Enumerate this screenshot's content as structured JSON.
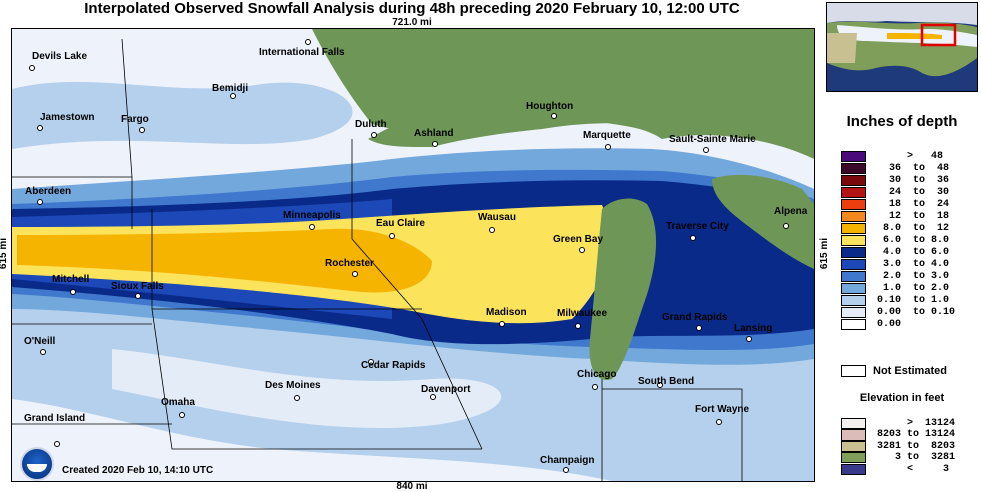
{
  "header": {
    "title": "Interpolated Observed Snowfall Analysis during 48h preceding 2020 February 10, 12:00 UTC",
    "top_distance": "721.0 mi",
    "bottom_distance": "840 mi",
    "left_distance": "615 mi",
    "right_distance": "615 mi"
  },
  "footer": {
    "created": "Created 2020 Feb 10, 14:10 UTC"
  },
  "cities": [
    {
      "name": "Devils Lake"
    },
    {
      "name": "International Falls"
    },
    {
      "name": "Bemidji"
    },
    {
      "name": "Jamestown"
    },
    {
      "name": "Fargo"
    },
    {
      "name": "Duluth"
    },
    {
      "name": "Ashland"
    },
    {
      "name": "Houghton"
    },
    {
      "name": "Marquette"
    },
    {
      "name": "Sault-Sainte Marie"
    },
    {
      "name": "Aberdeen"
    },
    {
      "name": "Minneapolis"
    },
    {
      "name": "Eau Claire"
    },
    {
      "name": "Wausau"
    },
    {
      "name": "Green Bay"
    },
    {
      "name": "Traverse City"
    },
    {
      "name": "Alpena"
    },
    {
      "name": "Rochester"
    },
    {
      "name": "Mitchell"
    },
    {
      "name": "Sioux Falls"
    },
    {
      "name": "Madison"
    },
    {
      "name": "Milwaukee"
    },
    {
      "name": "Grand Rapids"
    },
    {
      "name": "Lansing"
    },
    {
      "name": "O'Neill"
    },
    {
      "name": "Cedar Rapids"
    },
    {
      "name": "Des Moines"
    },
    {
      "name": "Davenport"
    },
    {
      "name": "Chicago"
    },
    {
      "name": "South Bend"
    },
    {
      "name": "Omaha"
    },
    {
      "name": "Fort Wayne"
    },
    {
      "name": "Grand Island"
    },
    {
      "name": "Champaign"
    }
  ],
  "legend": {
    "title": "Inches of depth",
    "rows": [
      {
        "text": "      >   48",
        "color": "#4b0a7a"
      },
      {
        "text": "   36  to  48",
        "color": "#3c0a28"
      },
      {
        "text": "   30  to  36",
        "color": "#7a0a0a"
      },
      {
        "text": "   24  to  30",
        "color": "#b41414"
      },
      {
        "text": "   18  to  24",
        "color": "#ee3e10"
      },
      {
        "text": "   12  to  18",
        "color": "#f5871f"
      },
      {
        "text": "  8.0  to  12",
        "color": "#f5b400"
      },
      {
        "text": "  6.0  to 8.0",
        "color": "#fbe45c"
      },
      {
        "text": "  4.0  to 6.0",
        "color": "#0a2a8a"
      },
      {
        "text": "  3.0  to 4.0",
        "color": "#1c48b8"
      },
      {
        "text": "  2.0  to 3.0",
        "color": "#3f78cc"
      },
      {
        "text": "  1.0  to 2.0",
        "color": "#73a8dc"
      },
      {
        "text": " 0.10  to 1.0",
        "color": "#b4d0ec"
      },
      {
        "text": " 0.00  to 0.10",
        "color": "#e4ecf8"
      },
      {
        "text": " 0.00",
        "color": "#ffffff"
      }
    ],
    "not_estimated": "Not Estimated",
    "elevation_title": "Elevation in feet",
    "elevation_rows": [
      {
        "text": "      >  13124",
        "color": "#f4f0f0"
      },
      {
        "text": " 8203 to 13124",
        "color": "#dcbcb8"
      },
      {
        "text": " 3281 to  8203",
        "color": "#c8c090"
      },
      {
        "text": "    3 to  3281",
        "color": "#7f9e5a"
      },
      {
        "text": "      <     3",
        "color": "#3a3a8a"
      }
    ]
  }
}
